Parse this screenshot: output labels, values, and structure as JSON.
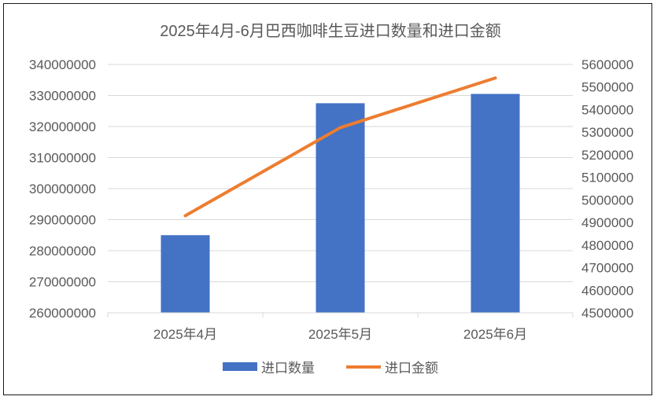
{
  "chart_data": {
    "type": "bar",
    "title": "2025年4月-6月巴西咖啡生豆进口数量和进口金额",
    "categories": [
      "2025年4月",
      "2025年5月",
      "2025年6月"
    ],
    "series": [
      {
        "name": "进口数量",
        "kind": "bar",
        "axis": "left",
        "color": "#4472C4",
        "values": [
          285000000,
          327500000,
          330500000
        ]
      },
      {
        "name": "进口金额",
        "kind": "line",
        "axis": "right",
        "color": "#ED7D31",
        "values": [
          4930000,
          5320000,
          5540000
        ]
      }
    ],
    "y_left": {
      "ylim": [
        260000000,
        340000000
      ],
      "ticks": [
        "340000000",
        "330000000",
        "320000000",
        "310000000",
        "300000000",
        "290000000",
        "280000000",
        "270000000",
        "260000000"
      ]
    },
    "y_right": {
      "ylim": [
        4500000,
        5600000
      ],
      "ticks": [
        "5600000",
        "5500000",
        "5400000",
        "5300000",
        "5200000",
        "5100000",
        "5000000",
        "4900000",
        "4800000",
        "4700000",
        "4600000",
        "4500000"
      ]
    },
    "grid": true,
    "legend_position": "bottom"
  }
}
